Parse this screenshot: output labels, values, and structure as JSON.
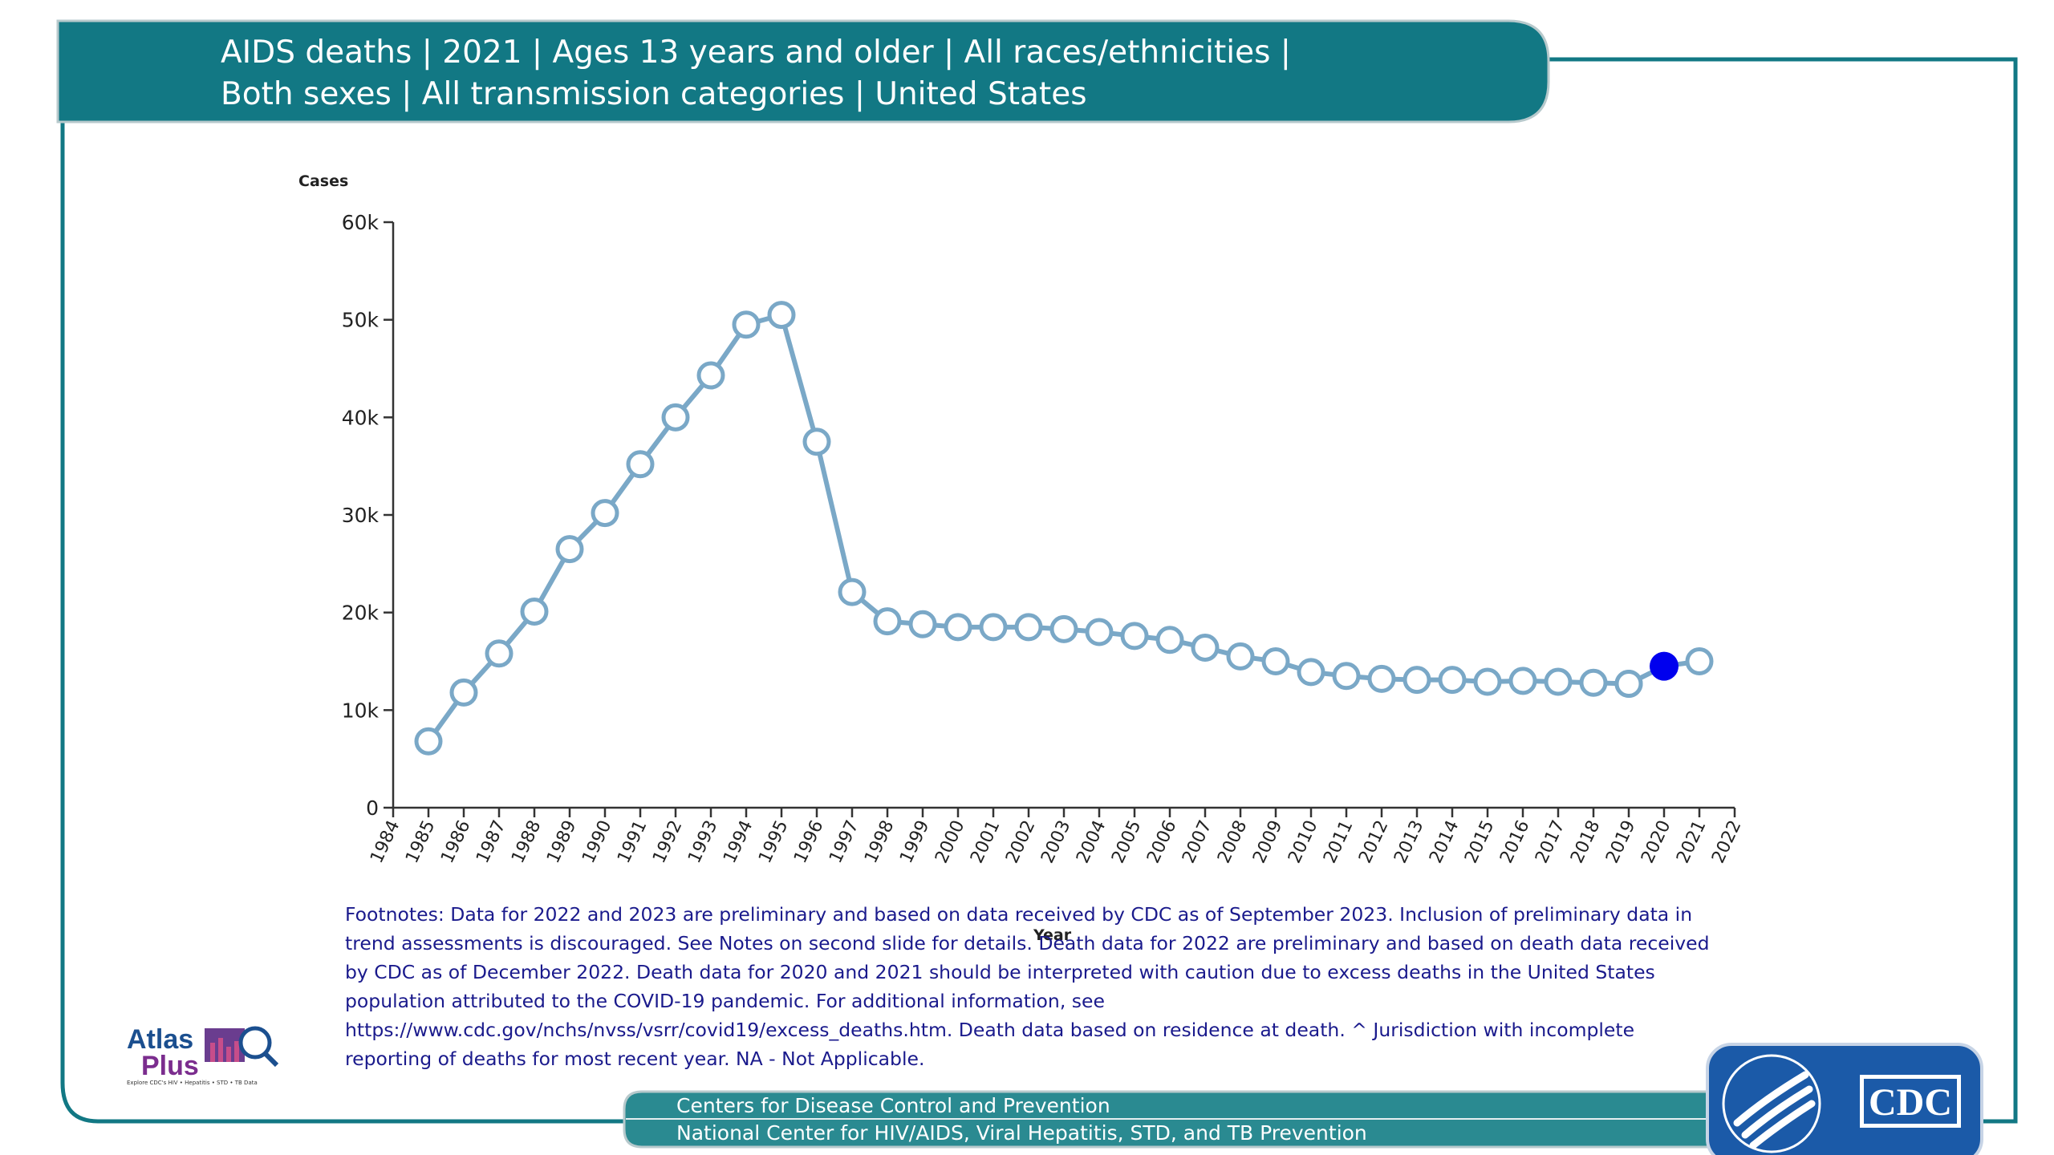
{
  "header": {
    "title_line1": "AIDS deaths | 2021 | Ages 13 years and older | All races/ethnicities |",
    "title_line2": "Both sexes | All transmission categories | United States"
  },
  "colors": {
    "teal": "#127884",
    "line": "#7aa8c7",
    "highlight_point": "#0000ee",
    "footnote_text": "#1a1a8c",
    "cdc_blue": "#1b5aa8"
  },
  "chart_data": {
    "type": "line",
    "title": "",
    "xlabel": "Year",
    "ylabel": "Cases",
    "ylim": [
      0,
      60000
    ],
    "xlim": [
      1984,
      2022
    ],
    "y_ticks": [
      {
        "value": 0,
        "label": "0"
      },
      {
        "value": 10000,
        "label": "10k"
      },
      {
        "value": 20000,
        "label": "20k"
      },
      {
        "value": 30000,
        "label": "30k"
      },
      {
        "value": 40000,
        "label": "40k"
      },
      {
        "value": 50000,
        "label": "50k"
      },
      {
        "value": 60000,
        "label": "60k"
      }
    ],
    "x_ticks": [
      "1984",
      "1985",
      "1986",
      "1987",
      "1988",
      "1989",
      "1990",
      "1991",
      "1992",
      "1993",
      "1994",
      "1995",
      "1996",
      "1997",
      "1998",
      "1999",
      "2000",
      "2001",
      "2002",
      "2003",
      "2004",
      "2005",
      "2006",
      "2007",
      "2008",
      "2009",
      "2010",
      "2011",
      "2012",
      "2013",
      "2014",
      "2015",
      "2016",
      "2017",
      "2018",
      "2019",
      "2020",
      "2021",
      "2022"
    ],
    "grid": false,
    "legend": "none",
    "series": [
      {
        "x": [
          1985,
          1986,
          1987,
          1988,
          1989,
          1990,
          1991,
          1992,
          1993,
          1994,
          1995,
          1996,
          1997,
          1998,
          1999,
          2000,
          2001,
          2002,
          2003,
          2004,
          2005,
          2006,
          2007,
          2008,
          2009,
          2010,
          2011,
          2012,
          2013,
          2014,
          2015,
          2016,
          2017,
          2018,
          2019
        ],
        "values": [
          6800,
          11800,
          15800,
          20100,
          26500,
          30200,
          35200,
          40000,
          44300,
          49500,
          50500,
          37500,
          22100,
          19100,
          18800,
          18500,
          18500,
          18500,
          18300,
          18000,
          17600,
          17200,
          16400,
          15500,
          15000,
          13900,
          13500,
          13200,
          13100,
          13100,
          12900,
          13000,
          12900,
          12800,
          12700
        ]
      },
      {
        "x": [
          2019,
          2020,
          2021
        ],
        "values": [
          12700,
          14500,
          15000
        ]
      }
    ],
    "highlighted_point": {
      "x": 2020,
      "value": 14500
    }
  },
  "footnotes": {
    "line1": "Footnotes: Data for 2022 and 2023 are preliminary and based on data received by CDC as of September 2023. Inclusion of preliminary data in",
    "line2": "trend assessments is discouraged. See Notes on second slide for details. Death data for 2022 are preliminary and based on death data received",
    "line3": "by CDC as of December 2022. Death data for 2020 and 2021 should be interpreted with caution due to excess deaths in the United States",
    "line4": "population attributed to the COVID-19 pandemic. For additional information, see",
    "line5": "https://www.cdc.gov/nchs/nvss/vsrr/covid19/excess_deaths.htm.  Death data based on residence at death. ^ Jurisdiction with incomplete",
    "line6": "reporting of deaths for most recent year. NA - Not Applicable."
  },
  "logo": {
    "atlas_word": "Atlas",
    "plus_word": "Plus",
    "tagline": "Explore CDC's HIV • Hepatitis • STD • TB Data"
  },
  "footer": {
    "line1": "Centers for Disease Control and Prevention",
    "line2": "National Center for HIV/AIDS, Viral Hepatitis, STD, and TB Prevention",
    "cdc_logo_text": "CDC"
  }
}
